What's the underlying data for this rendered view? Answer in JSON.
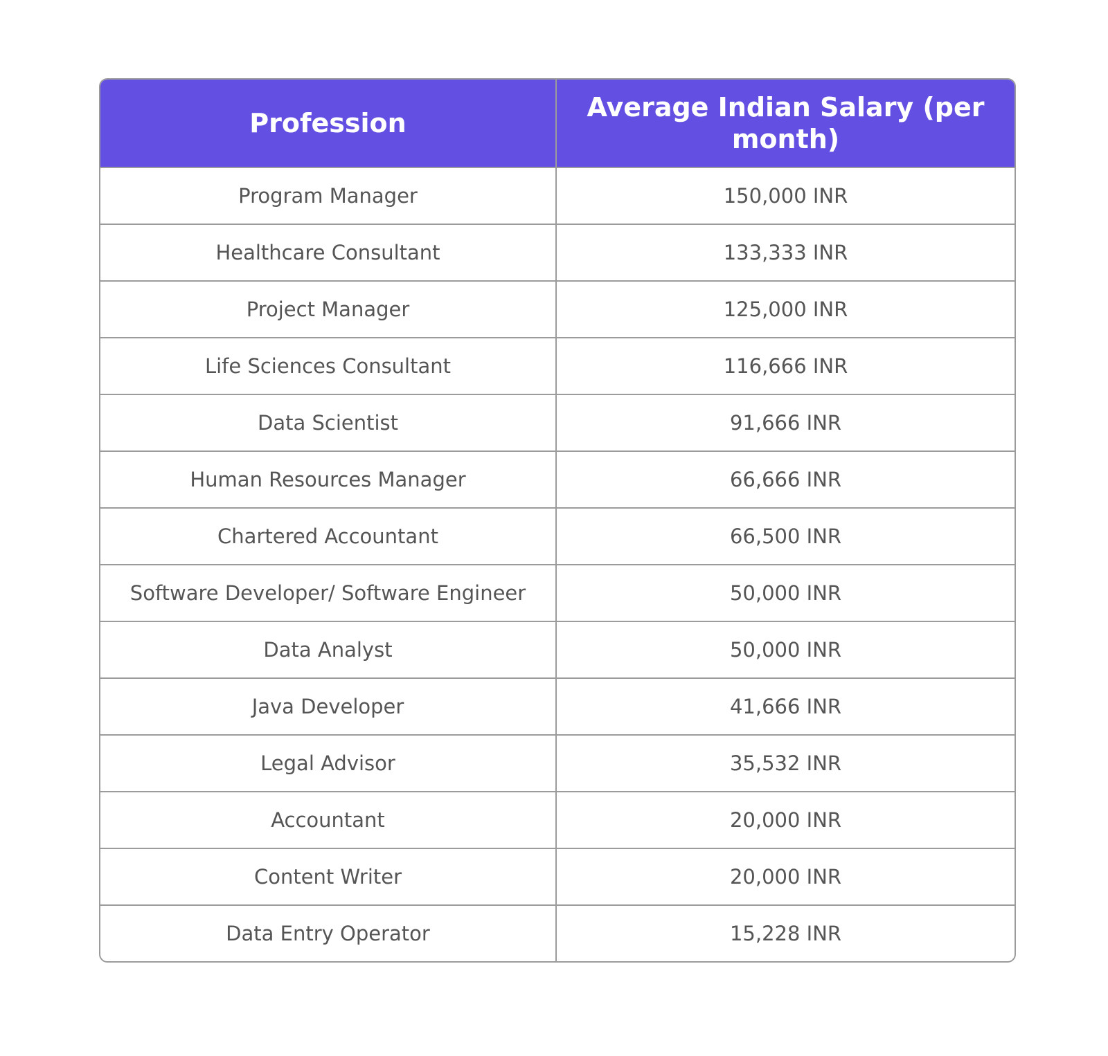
{
  "table": {
    "headers": [
      "Profession",
      "Average Indian Salary (per month)"
    ],
    "header_color": "#6350e2",
    "rows": [
      [
        "Program Manager",
        "150,000 INR"
      ],
      [
        "Healthcare Consultant",
        "133,333 INR"
      ],
      [
        "Project Manager",
        "125,000 INR"
      ],
      [
        "Life Sciences Consultant",
        "116,666 INR"
      ],
      [
        "Data Scientist",
        "91,666 INR"
      ],
      [
        "Human Resources Manager",
        "66,666 INR"
      ],
      [
        "Chartered Accountant",
        "66,500 INR"
      ],
      [
        "Software Developer/ Software Engineer",
        "50,000 INR"
      ],
      [
        "Data Analyst",
        "50,000 INR"
      ],
      [
        "Java Developer",
        "41,666 INR"
      ],
      [
        "Legal Advisor",
        "35,532 INR"
      ],
      [
        "Accountant",
        "20,000 INR"
      ],
      [
        "Content Writer",
        "20,000 INR"
      ],
      [
        "Data Entry Operator",
        "15,228 INR"
      ]
    ]
  }
}
